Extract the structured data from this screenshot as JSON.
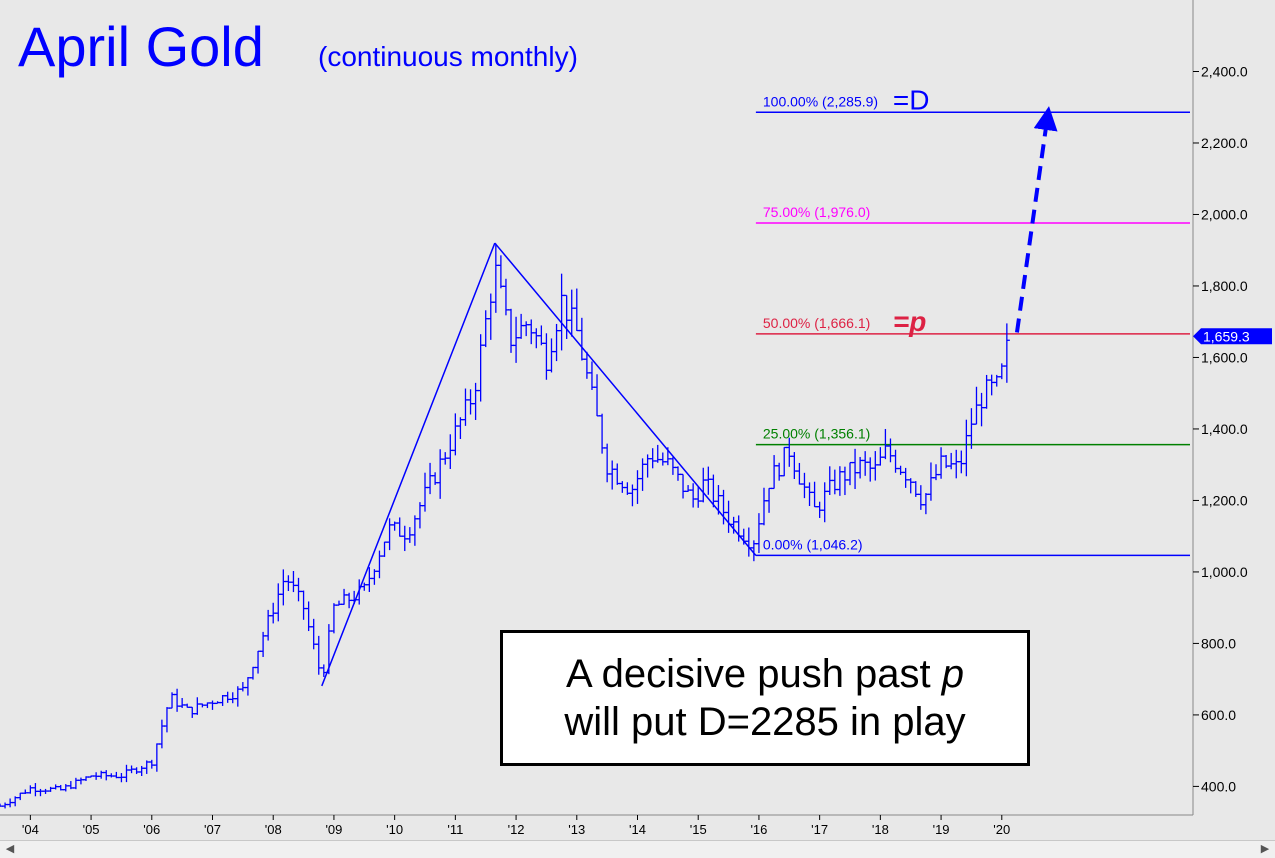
{
  "chart_data": {
    "type": "line",
    "title": "April Gold",
    "subtitle": "(continuous monthly)",
    "ylim": [
      320,
      2600
    ],
    "x_range": [
      2003.5,
      2023.1
    ],
    "y_ticks": [
      {
        "v": 400,
        "label": "400.0"
      },
      {
        "v": 600,
        "label": "600.0"
      },
      {
        "v": 800,
        "label": "800.0"
      },
      {
        "v": 1000,
        "label": "1,000.0"
      },
      {
        "v": 1200,
        "label": "1,200.0"
      },
      {
        "v": 1400,
        "label": "1,400.0"
      },
      {
        "v": 1600,
        "label": "1,600.0"
      },
      {
        "v": 1800,
        "label": "1,800.0"
      },
      {
        "v": 2000,
        "label": "2,000.0"
      },
      {
        "v": 2200,
        "label": "2,200.0"
      },
      {
        "v": 2400,
        "label": "2,400.0"
      }
    ],
    "x_ticks": [
      {
        "v": 2004,
        "label": "'04"
      },
      {
        "v": 2005,
        "label": "'05"
      },
      {
        "v": 2006,
        "label": "'06"
      },
      {
        "v": 2007,
        "label": "'07"
      },
      {
        "v": 2008,
        "label": "'08"
      },
      {
        "v": 2009,
        "label": "'09"
      },
      {
        "v": 2010,
        "label": "'10"
      },
      {
        "v": 2011,
        "label": "'11"
      },
      {
        "v": 2012,
        "label": "'12"
      },
      {
        "v": 2013,
        "label": "'13"
      },
      {
        "v": 2014,
        "label": "'14"
      },
      {
        "v": 2015,
        "label": "'15"
      },
      {
        "v": 2016,
        "label": "'16"
      },
      {
        "v": 2017,
        "label": "'17"
      },
      {
        "v": 2018,
        "label": "'18"
      },
      {
        "v": 2019,
        "label": "'19"
      },
      {
        "v": 2020,
        "label": "'20"
      }
    ],
    "price_path": [
      [
        2003.5,
        345
      ],
      [
        2004.0,
        395
      ],
      [
        2004.5,
        390
      ],
      [
        2005.0,
        430
      ],
      [
        2005.5,
        430
      ],
      [
        2006.0,
        470
      ],
      [
        2006.3,
        650
      ],
      [
        2006.6,
        610
      ],
      [
        2007.0,
        640
      ],
      [
        2007.5,
        670
      ],
      [
        2008.0,
        900
      ],
      [
        2008.2,
        990
      ],
      [
        2008.5,
        900
      ],
      [
        2008.8,
        700
      ],
      [
        2009.0,
        900
      ],
      [
        2009.5,
        950
      ],
      [
        2009.9,
        1120
      ],
      [
        2010.2,
        1110
      ],
      [
        2010.6,
        1250
      ],
      [
        2011.0,
        1390
      ],
      [
        2011.3,
        1500
      ],
      [
        2011.65,
        1850
      ],
      [
        2011.9,
        1650
      ],
      [
        2012.2,
        1700
      ],
      [
        2012.5,
        1600
      ],
      [
        2012.75,
        1760
      ],
      [
        2013.0,
        1670
      ],
      [
        2013.3,
        1450
      ],
      [
        2013.5,
        1300
      ],
      [
        2013.9,
        1230
      ],
      [
        2014.2,
        1330
      ],
      [
        2014.5,
        1300
      ],
      [
        2014.9,
        1200
      ],
      [
        2015.1,
        1250
      ],
      [
        2015.5,
        1150
      ],
      [
        2015.9,
        1080
      ],
      [
        2016.15,
        1250
      ],
      [
        2016.5,
        1340
      ],
      [
        2016.9,
        1170
      ],
      [
        2017.3,
        1260
      ],
      [
        2017.7,
        1300
      ],
      [
        2017.9,
        1280
      ],
      [
        2018.1,
        1340
      ],
      [
        2018.5,
        1260
      ],
      [
        2018.7,
        1200
      ],
      [
        2019.0,
        1300
      ],
      [
        2019.3,
        1290
      ],
      [
        2019.5,
        1420
      ],
      [
        2019.7,
        1500
      ],
      [
        2019.95,
        1520
      ],
      [
        2020.05,
        1590
      ],
      [
        2020.12,
        1659
      ]
    ],
    "swing_lines": [
      {
        "from": [
          2008.8,
          681
        ],
        "to": [
          2011.65,
          1920
        ]
      },
      {
        "from": [
          2011.65,
          1920
        ],
        "to": [
          2015.95,
          1046
        ]
      }
    ],
    "levels": [
      {
        "value": 2285.9,
        "label": "100.00% (2,285.9)",
        "tag": "=D",
        "color": "#0000ff"
      },
      {
        "value": 1976.0,
        "label": "75.00% (1,976.0)",
        "tag": "",
        "color": "#ff00ff"
      },
      {
        "value": 1666.1,
        "label": "50.00% (1,666.1)",
        "tag": "=p",
        "color": "#dd2244"
      },
      {
        "value": 1356.1,
        "label": "25.00% (1,356.1)",
        "tag": "",
        "color": "#008000"
      },
      {
        "value": 1046.2,
        "label": "0.00% (1,046.2)",
        "tag": "",
        "color": "#0000ff"
      }
    ],
    "projection": {
      "from": [
        2020.25,
        1670
      ],
      "to": [
        2020.75,
        2270
      ]
    },
    "last_price": {
      "value": 1659.3,
      "label": "1,659.3"
    },
    "series_color": "#0000ff"
  },
  "annotation": {
    "line1_prefix": "A decisive push past ",
    "line1_var": "p",
    "line2": "will put D=2285 in play"
  }
}
